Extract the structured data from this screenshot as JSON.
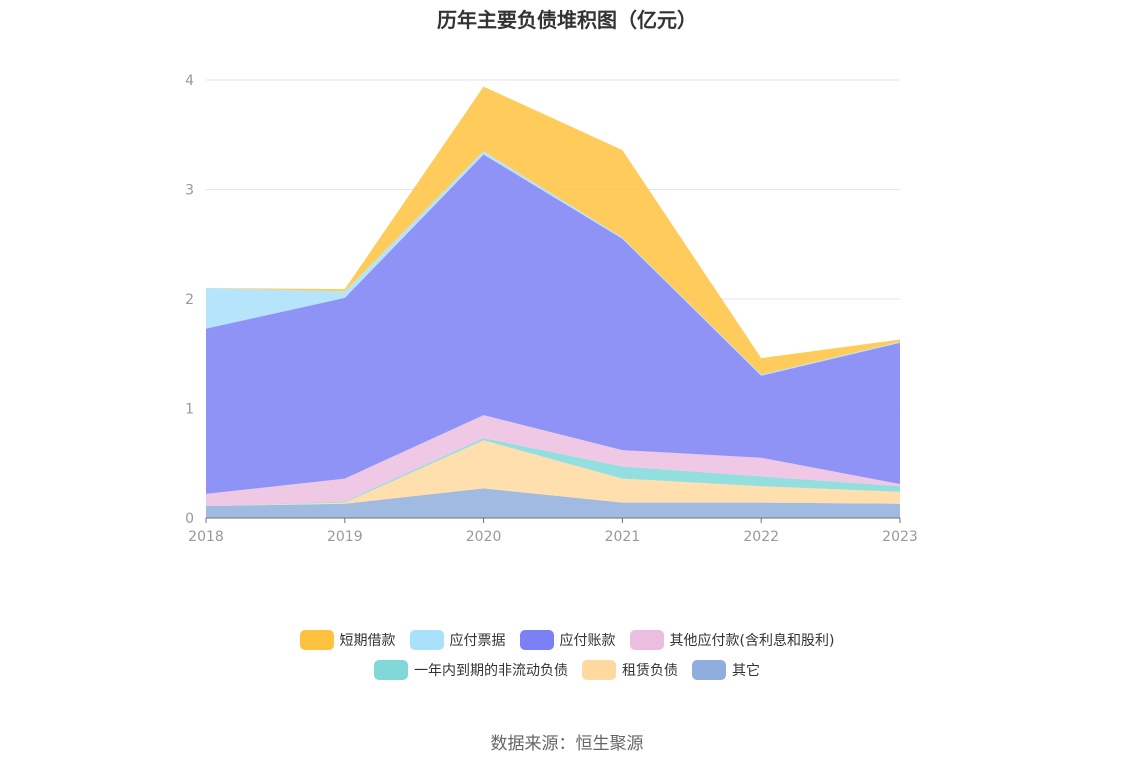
{
  "title": "历年主要负债堆积图（亿元）",
  "source": "数据来源：恒生聚源",
  "legend_rows": [
    [
      0,
      1,
      2,
      3
    ],
    [
      4,
      5,
      6
    ]
  ],
  "chart_data": {
    "type": "area",
    "stacked": true,
    "x": [
      "2018",
      "2019",
      "2020",
      "2021",
      "2022",
      "2023"
    ],
    "ylim": [
      0,
      4
    ],
    "yticks": [
      "0",
      "1",
      "2",
      "3",
      "4"
    ],
    "grid": true,
    "legend_position": "bottom",
    "series": [
      {
        "name": "短期借款",
        "color": "#FFC23E",
        "values": [
          0,
          0.02,
          0.59,
          0.8,
          0.15,
          0.02
        ]
      },
      {
        "name": "应付票据",
        "color": "#A9E1FA",
        "values": [
          0.37,
          0.06,
          0.03,
          0.01,
          0.01,
          0.01
        ]
      },
      {
        "name": "应付账款",
        "color": "#7B80F4",
        "values": [
          1.51,
          1.65,
          2.38,
          1.93,
          0.75,
          1.29
        ]
      },
      {
        "name": "其他应付款(含利息和股利)",
        "color": "#EBBEDF",
        "values": [
          0.11,
          0.21,
          0.21,
          0.15,
          0.17,
          0.02
        ]
      },
      {
        "name": "一年内到期的非流动负债",
        "color": "#80D8D8",
        "values": [
          0,
          0.01,
          0.02,
          0.11,
          0.09,
          0.05
        ]
      },
      {
        "name": "租赁负债",
        "color": "#FFD9A0",
        "values": [
          0,
          0.01,
          0.44,
          0.22,
          0.15,
          0.11
        ]
      },
      {
        "name": "其它",
        "color": "#8FAEDD",
        "values": [
          0.11,
          0.13,
          0.27,
          0.14,
          0.14,
          0.13
        ]
      }
    ]
  }
}
